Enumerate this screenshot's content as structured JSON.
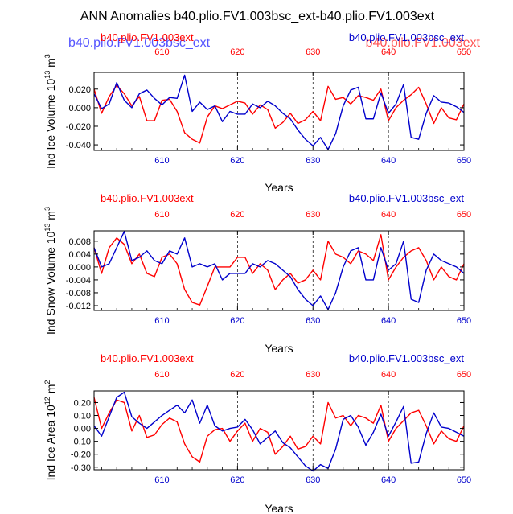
{
  "title": "ANN Anomalies b40.plio.FV1.003bsc_ext-b40.plio.FV1.003ext",
  "ghost_overlay": {
    "blue_text": "b40.plio.FV1.003bsc_ext",
    "red_text": "b40.plio.FV1.003ext"
  },
  "colors": {
    "red": "#ff0000",
    "blue": "#0000cc",
    "axis": "#000000"
  },
  "chart_data": [
    {
      "type": "line",
      "ylabel": "Ind Ice Volume 10",
      "ylabel_exp": "13",
      "ylabel_unit": " m",
      "ylabel_unit_exp": "3",
      "xlabel": "Years",
      "left_label": "b40.plio.FV1.003ext",
      "right_label": "b40.plio.FV1.003bsc_ext",
      "xlim": [
        601,
        650
      ],
      "ylim": [
        -0.046,
        0.038
      ],
      "yticks": [
        0.02,
        0.0,
        -0.02,
        -0.04
      ],
      "ytick_labels": [
        "0.020",
        "0.000",
        "-0.020",
        "-0.040"
      ],
      "xticks": [
        610,
        620,
        630,
        640,
        650
      ],
      "vlines": [
        610,
        620,
        630,
        640
      ],
      "series": [
        {
          "name": "b40.plio.FV1.003ext",
          "color": "red",
          "values": [
            0.02,
            -0.006,
            0.012,
            0.024,
            0.015,
            0.002,
            0.012,
            -0.014,
            -0.014,
            0.008,
            0.009,
            -0.004,
            -0.027,
            -0.034,
            -0.038,
            -0.01,
            0.002,
            -0.001,
            0.003,
            0.007,
            0.005,
            -0.007,
            0.003,
            -0.002,
            -0.022,
            -0.016,
            -0.006,
            -0.017,
            -0.013,
            -0.004,
            -0.014,
            0.023,
            0.009,
            0.011,
            0.004,
            0.013,
            0.011,
            0.008,
            0.02,
            -0.014,
            0.0,
            0.008,
            0.014,
            0.022,
            0.004,
            -0.017,
            0.0,
            -0.011,
            -0.013,
            0.004
          ]
        },
        {
          "name": "b40.plio.FV1.003bsc_ext",
          "color": "blue",
          "values": [
            0.015,
            -0.001,
            0.004,
            0.027,
            0.008,
            0.0,
            0.015,
            0.019,
            0.01,
            0.003,
            0.011,
            0.01,
            0.035,
            -0.004,
            0.006,
            -0.002,
            0.002,
            -0.015,
            -0.004,
            -0.007,
            -0.007,
            0.004,
            0.0,
            0.007,
            0.002,
            -0.006,
            -0.012,
            -0.024,
            -0.034,
            -0.041,
            -0.032,
            -0.045,
            -0.028,
            0.002,
            0.019,
            0.022,
            -0.012,
            -0.012,
            0.016,
            -0.006,
            0.004,
            0.025,
            -0.032,
            -0.034,
            -0.006,
            0.013,
            0.006,
            0.005,
            0.001,
            -0.005
          ]
        }
      ]
    },
    {
      "type": "line",
      "ylabel": "Ind Snow Volume 10",
      "ylabel_exp": "13",
      "ylabel_unit": " m",
      "ylabel_unit_exp": "3",
      "xlabel": "Years",
      "left_label": "b40.plio.FV1.003ext",
      "right_label": "b40.plio.FV1.003bsc_ext",
      "xlim": [
        601,
        650
      ],
      "ylim": [
        -0.0135,
        0.0112
      ],
      "yticks": [
        0.008,
        0.004,
        0.0,
        -0.004,
        -0.008,
        -0.012
      ],
      "ytick_labels": [
        "0.008",
        "0.004",
        "0.000",
        "-0.004",
        "-0.008",
        "-0.012"
      ],
      "xticks": [
        610,
        620,
        630,
        640,
        650
      ],
      "vlines": [
        610,
        620,
        630,
        640
      ],
      "series": [
        {
          "name": "b40.plio.FV1.003ext",
          "color": "red",
          "values": [
            0.006,
            -0.002,
            0.006,
            0.009,
            0.007,
            0.001,
            0.004,
            -0.002,
            -0.003,
            0.003,
            0.004,
            0.001,
            -0.007,
            -0.011,
            -0.0118,
            -0.006,
            0.0,
            0.0,
            0.0,
            0.003,
            0.003,
            -0.002,
            0.001,
            -0.001,
            -0.007,
            -0.004,
            -0.002,
            -0.005,
            -0.004,
            -0.001,
            -0.004,
            0.008,
            0.004,
            0.003,
            0.001,
            0.005,
            0.004,
            0.002,
            0.01,
            -0.004,
            0.0,
            0.003,
            0.005,
            0.006,
            0.002,
            -0.004,
            0.0,
            -0.003,
            -0.004,
            0.001
          ]
        },
        {
          "name": "b40.plio.FV1.003bsc_ext",
          "color": "blue",
          "values": [
            0.006,
            0.0,
            0.001,
            0.006,
            0.011,
            0.002,
            0.003,
            0.005,
            0.002,
            0.001,
            0.005,
            0.004,
            0.009,
            0.0,
            0.001,
            0.0,
            0.001,
            -0.004,
            -0.002,
            -0.002,
            -0.002,
            0.001,
            0.0,
            0.002,
            0.001,
            -0.001,
            -0.003,
            -0.007,
            -0.01,
            -0.012,
            -0.009,
            -0.0132,
            -0.008,
            0.0,
            0.005,
            0.006,
            -0.004,
            -0.004,
            0.006,
            -0.001,
            0.001,
            0.008,
            -0.01,
            -0.011,
            -0.001,
            0.004,
            0.002,
            0.001,
            0.0,
            -0.002
          ]
        }
      ]
    },
    {
      "type": "line",
      "ylabel": "Ind Ice Area 10",
      "ylabel_exp": "12",
      "ylabel_unit": " m",
      "ylabel_unit_exp": "2",
      "xlabel": "Years",
      "left_label": "b40.plio.FV1.003ext",
      "right_label": "b40.plio.FV1.003bsc_ext",
      "xlim": [
        601,
        650
      ],
      "ylim": [
        -0.32,
        0.29
      ],
      "yticks": [
        0.2,
        0.1,
        0.0,
        -0.1,
        -0.2,
        -0.3
      ],
      "ytick_labels": [
        "0.20",
        "0.10",
        "0.00",
        "-0.10",
        "-0.20",
        "-0.30"
      ],
      "xticks": [
        610,
        620,
        630,
        640,
        650
      ],
      "vlines": [
        610,
        620,
        630,
        640
      ],
      "series": [
        {
          "name": "b40.plio.FV1.003ext",
          "color": "red",
          "values": [
            0.24,
            0.0,
            0.12,
            0.22,
            0.2,
            -0.02,
            0.1,
            -0.07,
            -0.05,
            0.03,
            0.08,
            0.05,
            -0.12,
            -0.22,
            -0.26,
            -0.06,
            -0.01,
            0.0,
            -0.1,
            -0.02,
            0.04,
            -0.1,
            0.0,
            -0.03,
            -0.2,
            -0.14,
            -0.06,
            -0.16,
            -0.14,
            -0.06,
            -0.12,
            0.2,
            0.08,
            0.1,
            0.02,
            0.1,
            0.08,
            0.04,
            0.18,
            -0.1,
            0.0,
            0.06,
            0.12,
            0.14,
            0.02,
            -0.12,
            -0.02,
            -0.08,
            -0.1,
            0.02
          ]
        },
        {
          "name": "b40.plio.FV1.003bsc_ext",
          "color": "blue",
          "values": [
            0.02,
            -0.06,
            0.09,
            0.24,
            0.28,
            0.09,
            0.04,
            0.0,
            0.05,
            0.1,
            0.14,
            0.18,
            0.12,
            0.22,
            0.04,
            0.18,
            0.02,
            -0.02,
            0.0,
            0.01,
            0.07,
            -0.01,
            -0.12,
            -0.07,
            -0.02,
            -0.11,
            -0.15,
            -0.22,
            -0.29,
            -0.33,
            -0.28,
            -0.31,
            -0.16,
            0.07,
            0.1,
            0.01,
            -0.13,
            -0.03,
            0.11,
            -0.06,
            0.05,
            0.17,
            -0.27,
            -0.26,
            -0.04,
            0.12,
            0.01,
            0.0,
            -0.03,
            -0.06
          ]
        }
      ]
    }
  ]
}
